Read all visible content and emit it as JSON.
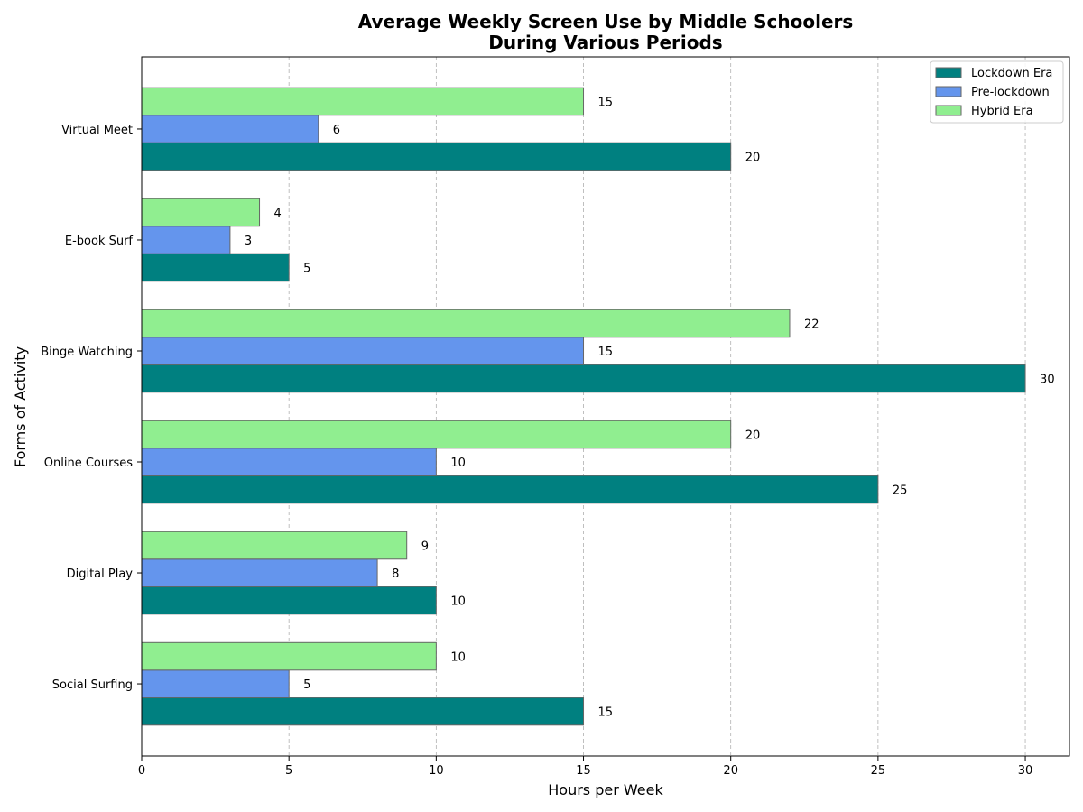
{
  "chart_data": {
    "type": "bar",
    "orientation": "horizontal",
    "title_line1": "Average Weekly Screen Use by Middle Schoolers",
    "title_line2": "During Various Periods",
    "xlabel": "Hours per Week",
    "ylabel": "Forms of Activity",
    "xlim": [
      0,
      31.5
    ],
    "xticks": [
      "0",
      "5",
      "10",
      "15",
      "20",
      "25",
      "30"
    ],
    "grid": "vertical dashed",
    "legend_position": "top-right",
    "categories": [
      "Social Surfing",
      "Digital Play",
      "Online Courses",
      "Binge Watching",
      "E-book Surf",
      "Virtual Meet"
    ],
    "series": [
      {
        "name": "Lockdown Era",
        "color": "#008080",
        "values": [
          15,
          10,
          25,
          30,
          5,
          20
        ]
      },
      {
        "name": "Pre-lockdown",
        "color": "#6495ED",
        "values": [
          5,
          8,
          10,
          15,
          3,
          6
        ]
      },
      {
        "name": "Hybrid Era",
        "color": "#90EE90",
        "values": [
          10,
          9,
          20,
          22,
          4,
          15
        ]
      }
    ]
  }
}
